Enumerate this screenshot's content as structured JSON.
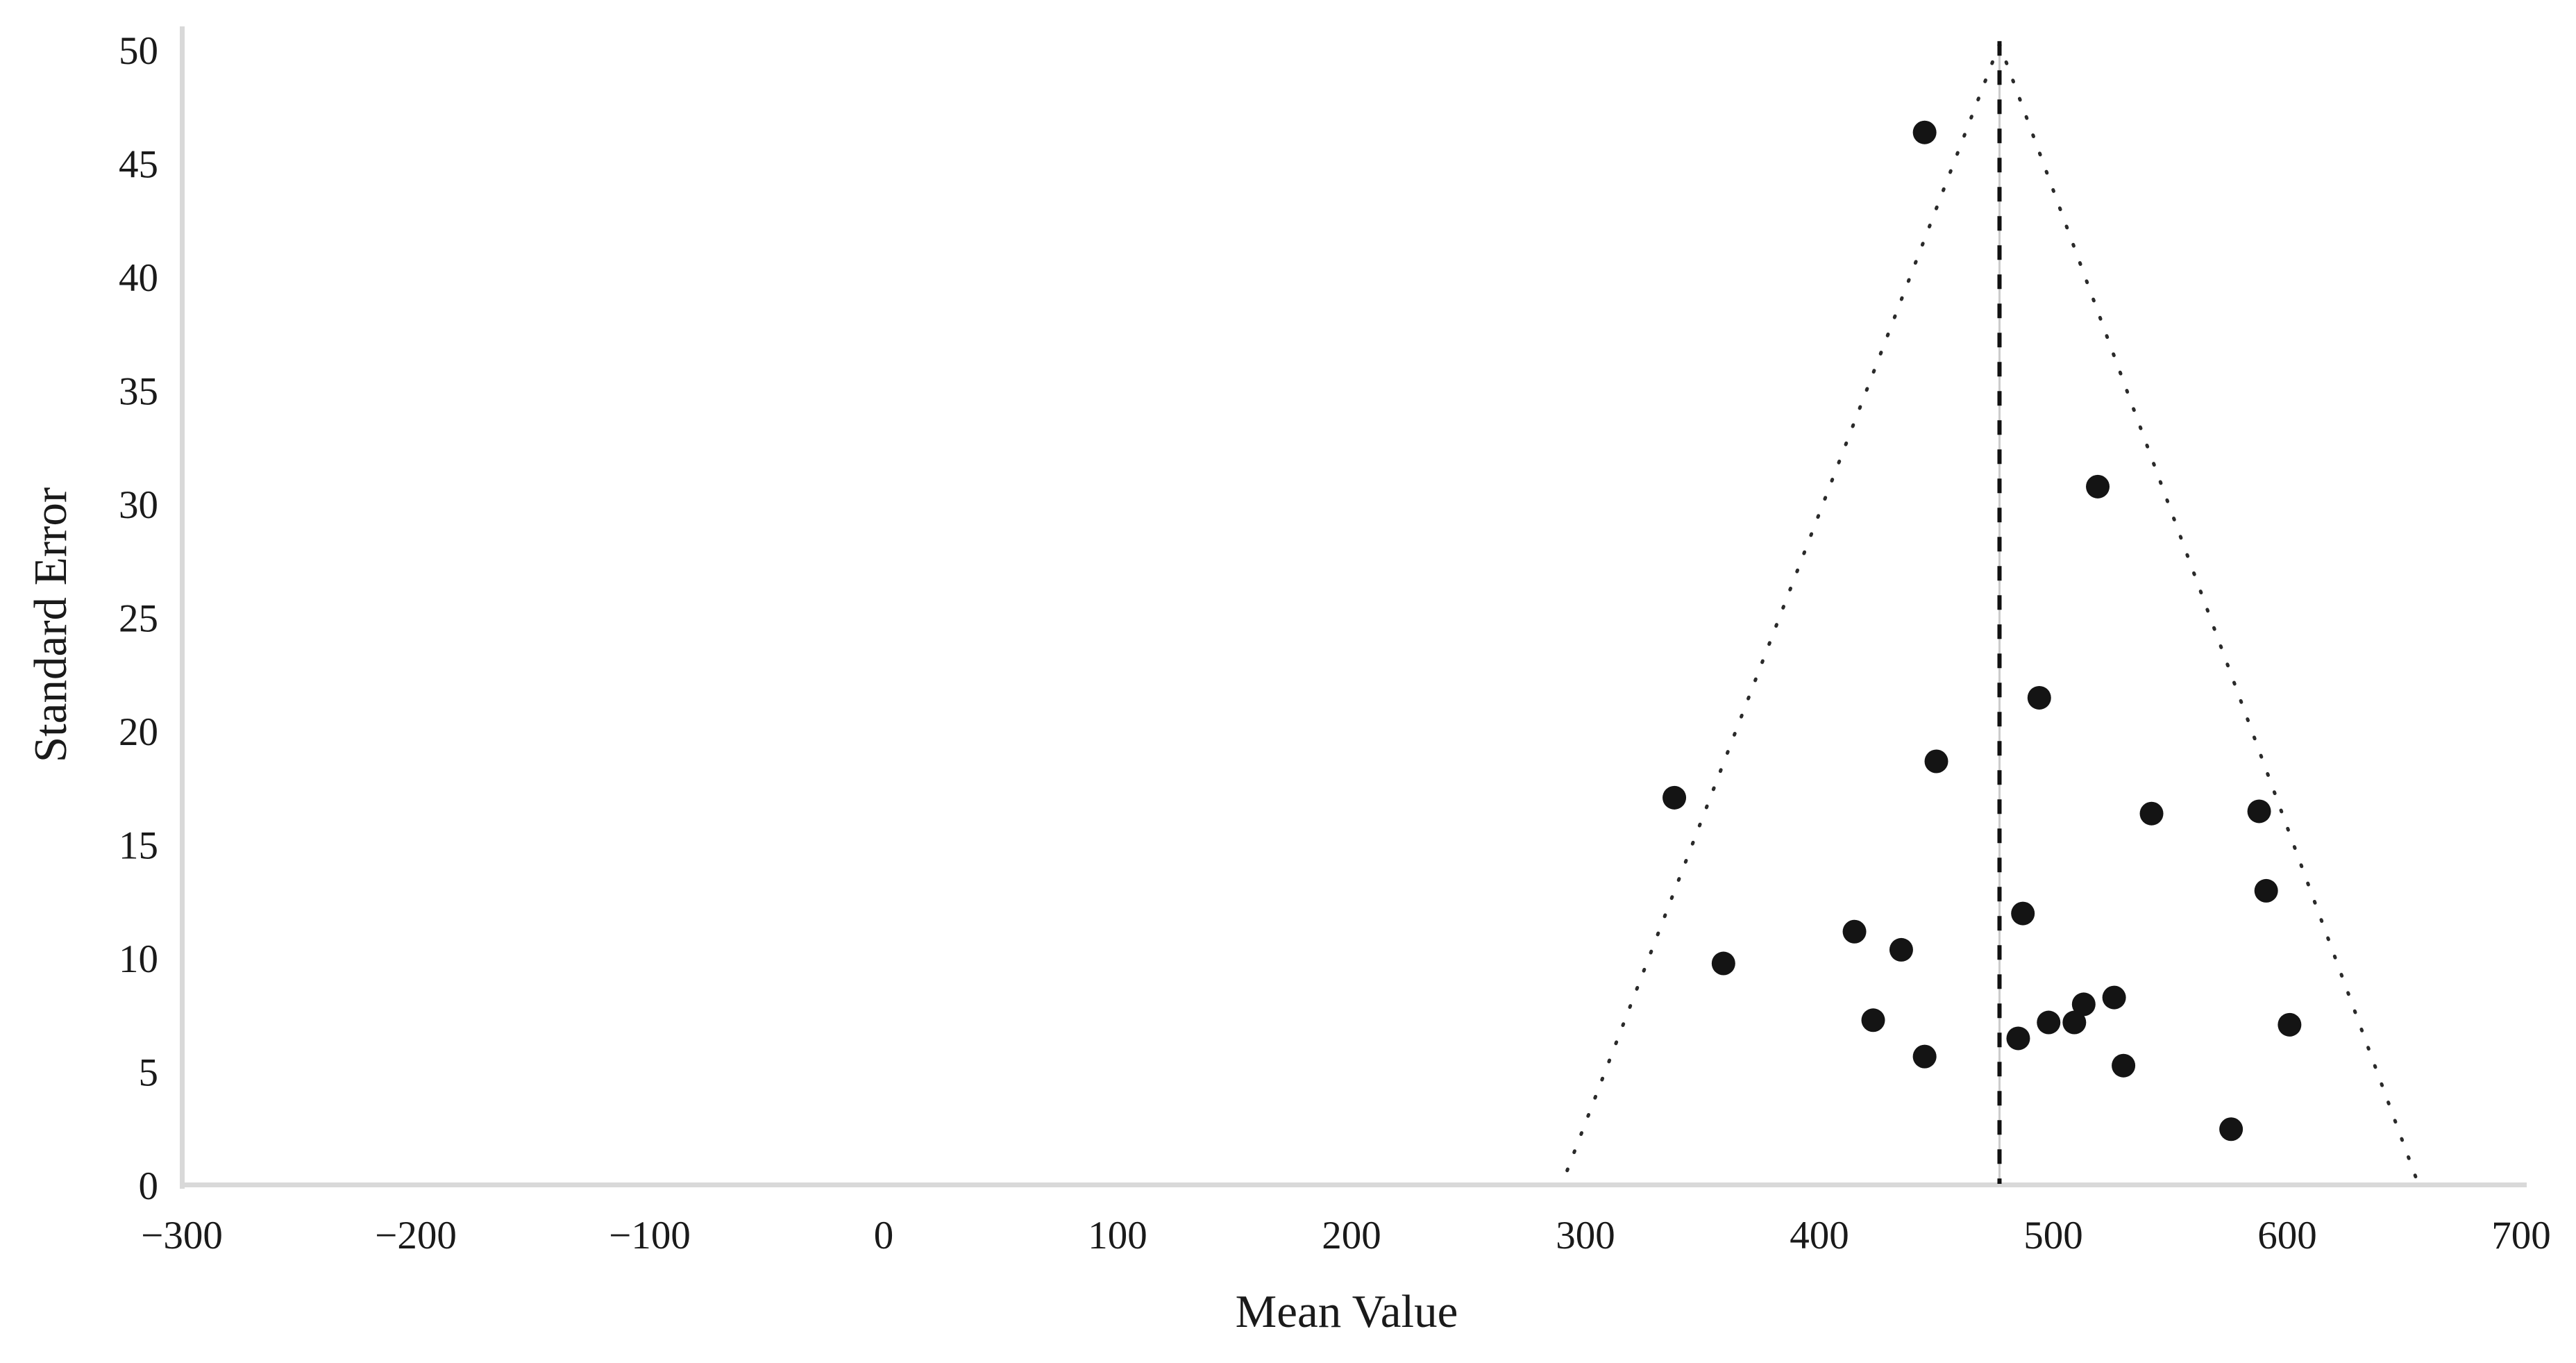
{
  "chart_data": {
    "type": "scatter",
    "variant": "funnel-plot",
    "title": "",
    "xlabel": "Mean Value",
    "ylabel": "Standard Error",
    "xlim": [
      -300,
      700
    ],
    "ylim": [
      0,
      50
    ],
    "grid": false,
    "legend": false,
    "x_ticks": [
      {
        "value": -300,
        "label": "−300"
      },
      {
        "value": -200,
        "label": "−200"
      },
      {
        "value": -100,
        "label": "−100"
      },
      {
        "value": 0,
        "label": "0"
      },
      {
        "value": 100,
        "label": "100"
      },
      {
        "value": 200,
        "label": "200"
      },
      {
        "value": 300,
        "label": "300"
      },
      {
        "value": 400,
        "label": "400"
      },
      {
        "value": 500,
        "label": "500"
      },
      {
        "value": 600,
        "label": "600"
      },
      {
        "value": 700,
        "label": "700"
      }
    ],
    "y_ticks": [
      {
        "value": 0,
        "label": "0"
      },
      {
        "value": 5,
        "label": "5"
      },
      {
        "value": 10,
        "label": "10"
      },
      {
        "value": 15,
        "label": "15"
      },
      {
        "value": 20,
        "label": "20"
      },
      {
        "value": 25,
        "label": "25"
      },
      {
        "value": 30,
        "label": "30"
      },
      {
        "value": 35,
        "label": "35"
      },
      {
        "value": 40,
        "label": "40"
      },
      {
        "value": 45,
        "label": "45"
      },
      {
        "value": 50,
        "label": "50"
      }
    ],
    "points": [
      {
        "x": 445,
        "y": 46.4
      },
      {
        "x": 519,
        "y": 30.8
      },
      {
        "x": 494,
        "y": 21.5
      },
      {
        "x": 450,
        "y": 18.7
      },
      {
        "x": 338,
        "y": 17.1
      },
      {
        "x": 588,
        "y": 16.5
      },
      {
        "x": 542,
        "y": 16.4
      },
      {
        "x": 591,
        "y": 13.0
      },
      {
        "x": 487,
        "y": 12.0
      },
      {
        "x": 415,
        "y": 11.2
      },
      {
        "x": 435,
        "y": 10.4
      },
      {
        "x": 359,
        "y": 9.8
      },
      {
        "x": 526,
        "y": 8.3
      },
      {
        "x": 513,
        "y": 8.0
      },
      {
        "x": 423,
        "y": 7.3
      },
      {
        "x": 498,
        "y": 7.2
      },
      {
        "x": 509,
        "y": 7.2
      },
      {
        "x": 601,
        "y": 7.1
      },
      {
        "x": 485,
        "y": 6.5
      },
      {
        "x": 445,
        "y": 5.7
      },
      {
        "x": 530,
        "y": 5.3
      },
      {
        "x": 576,
        "y": 2.5
      }
    ],
    "funnel": {
      "apex_x": 477,
      "apex_y": 50.3,
      "left_base_x": 290,
      "right_base_x": 656,
      "center_line_x": 477
    },
    "colors": {
      "point": "#141414",
      "axis_line": "#d9d9d9",
      "funnel_dotted": "#2a2a2a",
      "center_dash": "#111111",
      "center_underlay": "#cccccc",
      "text": "#1a1a1a"
    }
  }
}
